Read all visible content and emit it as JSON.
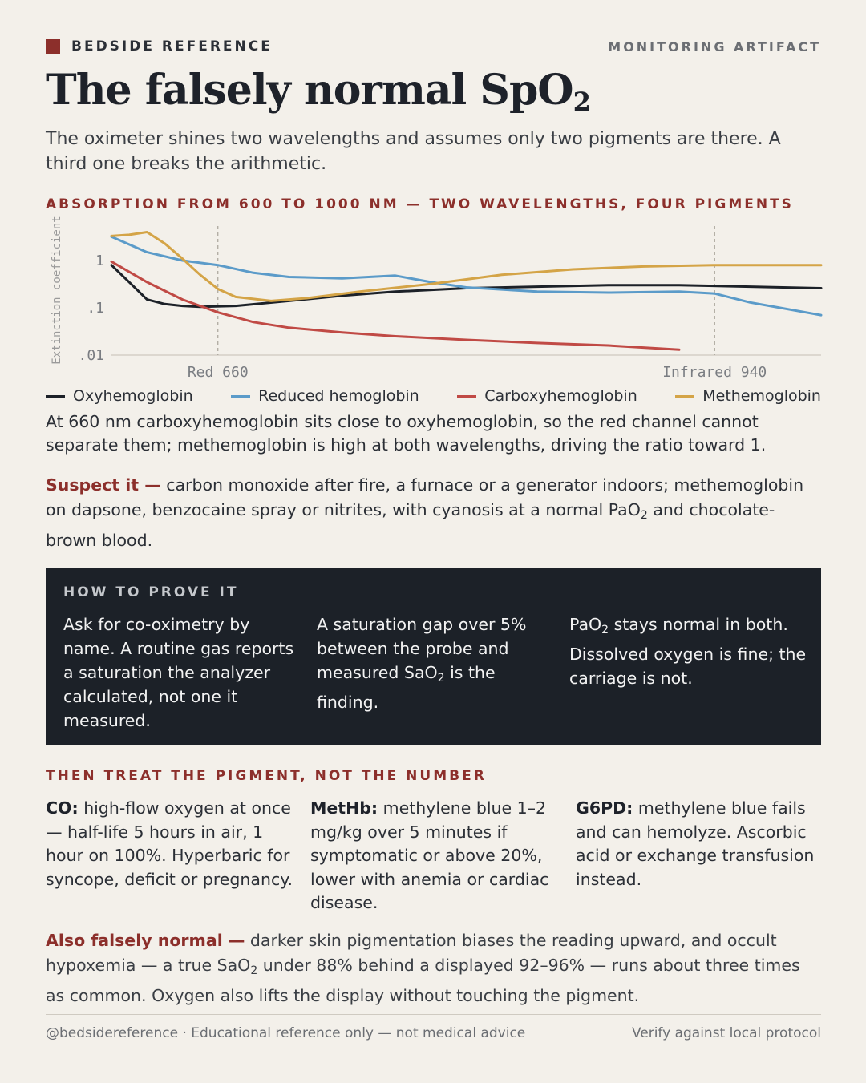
{
  "header": {
    "brand": "BEDSIDE REFERENCE",
    "tag": "MONITORING ARTIFACT",
    "title_main": "The falsely normal SpO",
    "title_sub": "2",
    "lede": "The oximeter shines two wavelengths and assumes only two pigments are there. A third one breaks the arithmetic."
  },
  "chart_heading": "ABSORPTION FROM 600 TO 1000 NM — TWO WAVELENGTHS, FOUR PIGMENTS",
  "chart_data": {
    "type": "line",
    "ylabel": "Extinction coefficient",
    "yscale": "log",
    "ylim": [
      0.01,
      5
    ],
    "xlim": [
      600,
      1000
    ],
    "yticks": [
      {
        "value": 1,
        "label": "1"
      },
      {
        "value": 0.1,
        "label": ".1"
      },
      {
        "value": 0.01,
        "label": ".01"
      }
    ],
    "markers": [
      {
        "x": 660,
        "label": "Red 660"
      },
      {
        "x": 940,
        "label": "Infrared 940"
      }
    ],
    "grid": false,
    "legend_position": "bottom",
    "series": [
      {
        "name": "Oxyhemoglobin",
        "color": "#1c2128",
        "points": [
          [
            600,
            0.8
          ],
          [
            610,
            0.35
          ],
          [
            620,
            0.15
          ],
          [
            630,
            0.12
          ],
          [
            640,
            0.11
          ],
          [
            650,
            0.105
          ],
          [
            670,
            0.11
          ],
          [
            700,
            0.14
          ],
          [
            730,
            0.18
          ],
          [
            760,
            0.22
          ],
          [
            800,
            0.26
          ],
          [
            840,
            0.28
          ],
          [
            880,
            0.3
          ],
          [
            920,
            0.3
          ],
          [
            960,
            0.28
          ],
          [
            1000,
            0.26
          ]
        ]
      },
      {
        "name": "Reduced hemoglobin",
        "color": "#5b9bc9",
        "points": [
          [
            600,
            3.2
          ],
          [
            620,
            1.5
          ],
          [
            640,
            1.0
          ],
          [
            660,
            0.8
          ],
          [
            680,
            0.55
          ],
          [
            700,
            0.45
          ],
          [
            730,
            0.42
          ],
          [
            760,
            0.48
          ],
          [
            780,
            0.35
          ],
          [
            800,
            0.27
          ],
          [
            840,
            0.22
          ],
          [
            880,
            0.21
          ],
          [
            920,
            0.22
          ],
          [
            940,
            0.2
          ],
          [
            960,
            0.13
          ],
          [
            1000,
            0.07
          ]
        ]
      },
      {
        "name": "Carboxyhemoglobin",
        "color": "#c04a45",
        "points": [
          [
            600,
            0.95
          ],
          [
            620,
            0.35
          ],
          [
            640,
            0.15
          ],
          [
            660,
            0.08
          ],
          [
            680,
            0.05
          ],
          [
            700,
            0.038
          ],
          [
            730,
            0.03
          ],
          [
            760,
            0.025
          ],
          [
            800,
            0.021
          ],
          [
            840,
            0.018
          ],
          [
            880,
            0.016
          ],
          [
            920,
            0.013
          ]
        ]
      },
      {
        "name": "Methemoglobin",
        "color": "#d4a447",
        "points": [
          [
            600,
            3.3
          ],
          [
            610,
            3.5
          ],
          [
            620,
            4.0
          ],
          [
            630,
            2.3
          ],
          [
            640,
            1.1
          ],
          [
            650,
            0.5
          ],
          [
            660,
            0.25
          ],
          [
            670,
            0.17
          ],
          [
            690,
            0.14
          ],
          [
            710,
            0.16
          ],
          [
            740,
            0.22
          ],
          [
            780,
            0.32
          ],
          [
            820,
            0.5
          ],
          [
            860,
            0.65
          ],
          [
            900,
            0.75
          ],
          [
            940,
            0.8
          ],
          [
            1000,
            0.8
          ]
        ]
      }
    ]
  },
  "caption": "At 660 nm carboxyhemoglobin sits close to oxyhemoglobin, so the red channel cannot separate them; methemoglobin is high at both wavelengths, driving the ratio toward 1.",
  "suspect": {
    "lead": "Suspect it —",
    "text1": " carbon monoxide after fire, a furnace or a generator indoors; methemoglobin on dapsone, benzocaine spray or nitrites, with cyanosis at a normal PaO",
    "sub": "2",
    "text2": " and chocolate-brown blood."
  },
  "proof": {
    "heading": "HOW TO PROVE IT",
    "card1": "Ask for co-oximetry by name. A routine gas reports a saturation the analyzer calculated, not one it measured.",
    "card2_a": "A saturation gap over 5% between the probe and measured SaO",
    "card2_sub": "2",
    "card2_b": " is the finding.",
    "card3_a": "PaO",
    "card3_sub": "2",
    "card3_b": " stays normal in both. Dissolved oxygen is fine; the carriage is not."
  },
  "treat": {
    "heading": "THEN TREAT THE PIGMENT, NOT THE NUMBER",
    "items": [
      {
        "label": "CO:",
        "text": " high-flow oxygen at once — half-life 5 hours in air, 1 hour on 100%. Hyperbaric for syncope, deficit or pregnancy."
      },
      {
        "label": "MetHb:",
        "text": " methylene blue 1–2 mg/kg over 5 minutes if symptomatic or above 20%, lower with anemia or cardiac disease."
      },
      {
        "label": "G6PD:",
        "text": " methylene blue fails and can hemolyze. Ascorbic acid or exchange transfusion instead."
      }
    ]
  },
  "also": {
    "lead": "Also falsely normal —",
    "text1": " darker skin pigmentation biases the reading upward, and occult hypoxemia — a true SaO",
    "sub": "2",
    "text2": " under 88% behind a displayed 92–96% — runs about three times as common. Oxygen also lifts the display without touching the pigment."
  },
  "footer": {
    "left": "@bedsidereference · Educational reference only — not medical advice",
    "right": "Verify against local protocol"
  }
}
